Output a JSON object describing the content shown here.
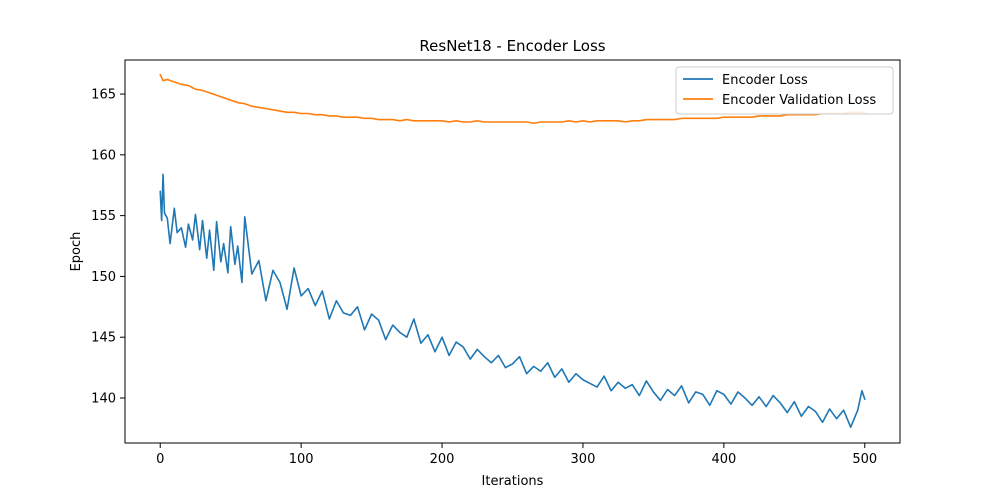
{
  "chart_data": {
    "type": "line",
    "title": "ResNet18 - Encoder Loss",
    "xlabel": "Iterations",
    "ylabel": "Epoch",
    "xlim": [
      -25,
      525
    ],
    "ylim": [
      136.3,
      167.8
    ],
    "xticks": [
      0,
      100,
      200,
      300,
      400,
      500
    ],
    "yticks": [
      140,
      145,
      150,
      155,
      160,
      165
    ],
    "grid": false,
    "legend_position": "top-right",
    "series": [
      {
        "name": "Encoder Loss",
        "color": "#1f77b4",
        "x": [
          0,
          1,
          2,
          3,
          5,
          7,
          10,
          12,
          15,
          18,
          20,
          23,
          25,
          28,
          30,
          33,
          35,
          38,
          40,
          43,
          45,
          48,
          50,
          53,
          55,
          58,
          60,
          65,
          70,
          75,
          80,
          85,
          90,
          95,
          100,
          105,
          110,
          115,
          120,
          125,
          130,
          135,
          140,
          145,
          150,
          155,
          160,
          165,
          170,
          175,
          180,
          185,
          190,
          195,
          200,
          205,
          210,
          215,
          220,
          225,
          230,
          235,
          240,
          245,
          250,
          255,
          260,
          265,
          270,
          275,
          280,
          285,
          290,
          295,
          300,
          305,
          310,
          315,
          320,
          325,
          330,
          335,
          340,
          345,
          350,
          355,
          360,
          365,
          370,
          375,
          380,
          385,
          390,
          395,
          400,
          405,
          410,
          415,
          420,
          425,
          430,
          435,
          440,
          445,
          450,
          455,
          460,
          465,
          470,
          475,
          480,
          485,
          490,
          495,
          498,
          500
        ],
        "y": [
          157.0,
          154.6,
          158.4,
          155.2,
          154.8,
          152.7,
          155.6,
          153.6,
          154.0,
          152.4,
          154.3,
          153.0,
          155.1,
          152.2,
          154.6,
          151.5,
          153.8,
          150.5,
          154.5,
          151.2,
          152.7,
          150.3,
          154.1,
          151.0,
          152.5,
          149.5,
          154.9,
          150.2,
          151.3,
          148.0,
          150.5,
          149.5,
          147.3,
          150.7,
          148.4,
          149.0,
          147.6,
          148.8,
          146.5,
          148.0,
          147.0,
          146.8,
          147.5,
          145.6,
          146.9,
          146.4,
          144.8,
          146.0,
          145.4,
          145.0,
          146.5,
          144.5,
          145.2,
          143.8,
          145.0,
          143.5,
          144.6,
          144.2,
          143.2,
          144.0,
          143.4,
          142.9,
          143.5,
          142.5,
          142.8,
          143.4,
          142.0,
          142.6,
          142.2,
          142.9,
          141.7,
          142.4,
          141.3,
          142.0,
          141.5,
          141.2,
          140.9,
          141.8,
          140.6,
          141.3,
          140.8,
          141.1,
          140.2,
          141.4,
          140.5,
          139.8,
          140.7,
          140.2,
          141.0,
          139.6,
          140.5,
          140.3,
          139.4,
          140.6,
          140.3,
          139.5,
          140.5,
          140.0,
          139.4,
          140.1,
          139.3,
          140.2,
          139.6,
          138.8,
          139.7,
          138.5,
          139.3,
          138.9,
          138.0,
          139.1,
          138.3,
          139.0,
          137.6,
          139.0,
          140.6,
          139.9
        ]
      },
      {
        "name": "Encoder Validation Loss",
        "color": "#ff7f0e",
        "x": [
          0,
          2,
          5,
          10,
          15,
          20,
          25,
          30,
          35,
          40,
          45,
          50,
          55,
          60,
          65,
          70,
          75,
          80,
          85,
          90,
          95,
          100,
          105,
          110,
          115,
          120,
          125,
          130,
          135,
          140,
          145,
          150,
          155,
          160,
          165,
          170,
          175,
          180,
          185,
          190,
          195,
          200,
          205,
          210,
          215,
          220,
          225,
          230,
          235,
          240,
          245,
          250,
          255,
          260,
          265,
          270,
          275,
          280,
          285,
          290,
          295,
          300,
          305,
          310,
          315,
          320,
          325,
          330,
          335,
          340,
          345,
          350,
          355,
          360,
          365,
          370,
          375,
          380,
          385,
          390,
          395,
          400,
          405,
          410,
          415,
          420,
          425,
          430,
          435,
          440,
          445,
          450,
          455,
          460,
          465,
          470,
          475,
          480,
          485,
          490,
          495,
          500
        ],
        "y": [
          166.6,
          166.1,
          166.2,
          166.0,
          165.8,
          165.7,
          165.4,
          165.3,
          165.1,
          164.9,
          164.7,
          164.5,
          164.3,
          164.2,
          164.0,
          163.9,
          163.8,
          163.7,
          163.6,
          163.5,
          163.5,
          163.4,
          163.4,
          163.3,
          163.3,
          163.2,
          163.2,
          163.1,
          163.1,
          163.1,
          163.0,
          163.0,
          162.9,
          162.9,
          162.9,
          162.8,
          162.9,
          162.8,
          162.8,
          162.8,
          162.8,
          162.8,
          162.7,
          162.8,
          162.7,
          162.7,
          162.8,
          162.7,
          162.7,
          162.7,
          162.7,
          162.7,
          162.7,
          162.7,
          162.6,
          162.7,
          162.7,
          162.7,
          162.7,
          162.8,
          162.7,
          162.8,
          162.7,
          162.8,
          162.8,
          162.8,
          162.8,
          162.7,
          162.8,
          162.8,
          162.9,
          162.9,
          162.9,
          162.9,
          162.9,
          163.0,
          163.0,
          163.0,
          163.0,
          163.0,
          163.0,
          163.1,
          163.1,
          163.1,
          163.1,
          163.1,
          163.2,
          163.2,
          163.2,
          163.2,
          163.3,
          163.3,
          163.3,
          163.3,
          163.3,
          163.4,
          163.4,
          163.4,
          163.4,
          163.5,
          163.5,
          163.5
        ]
      }
    ]
  }
}
